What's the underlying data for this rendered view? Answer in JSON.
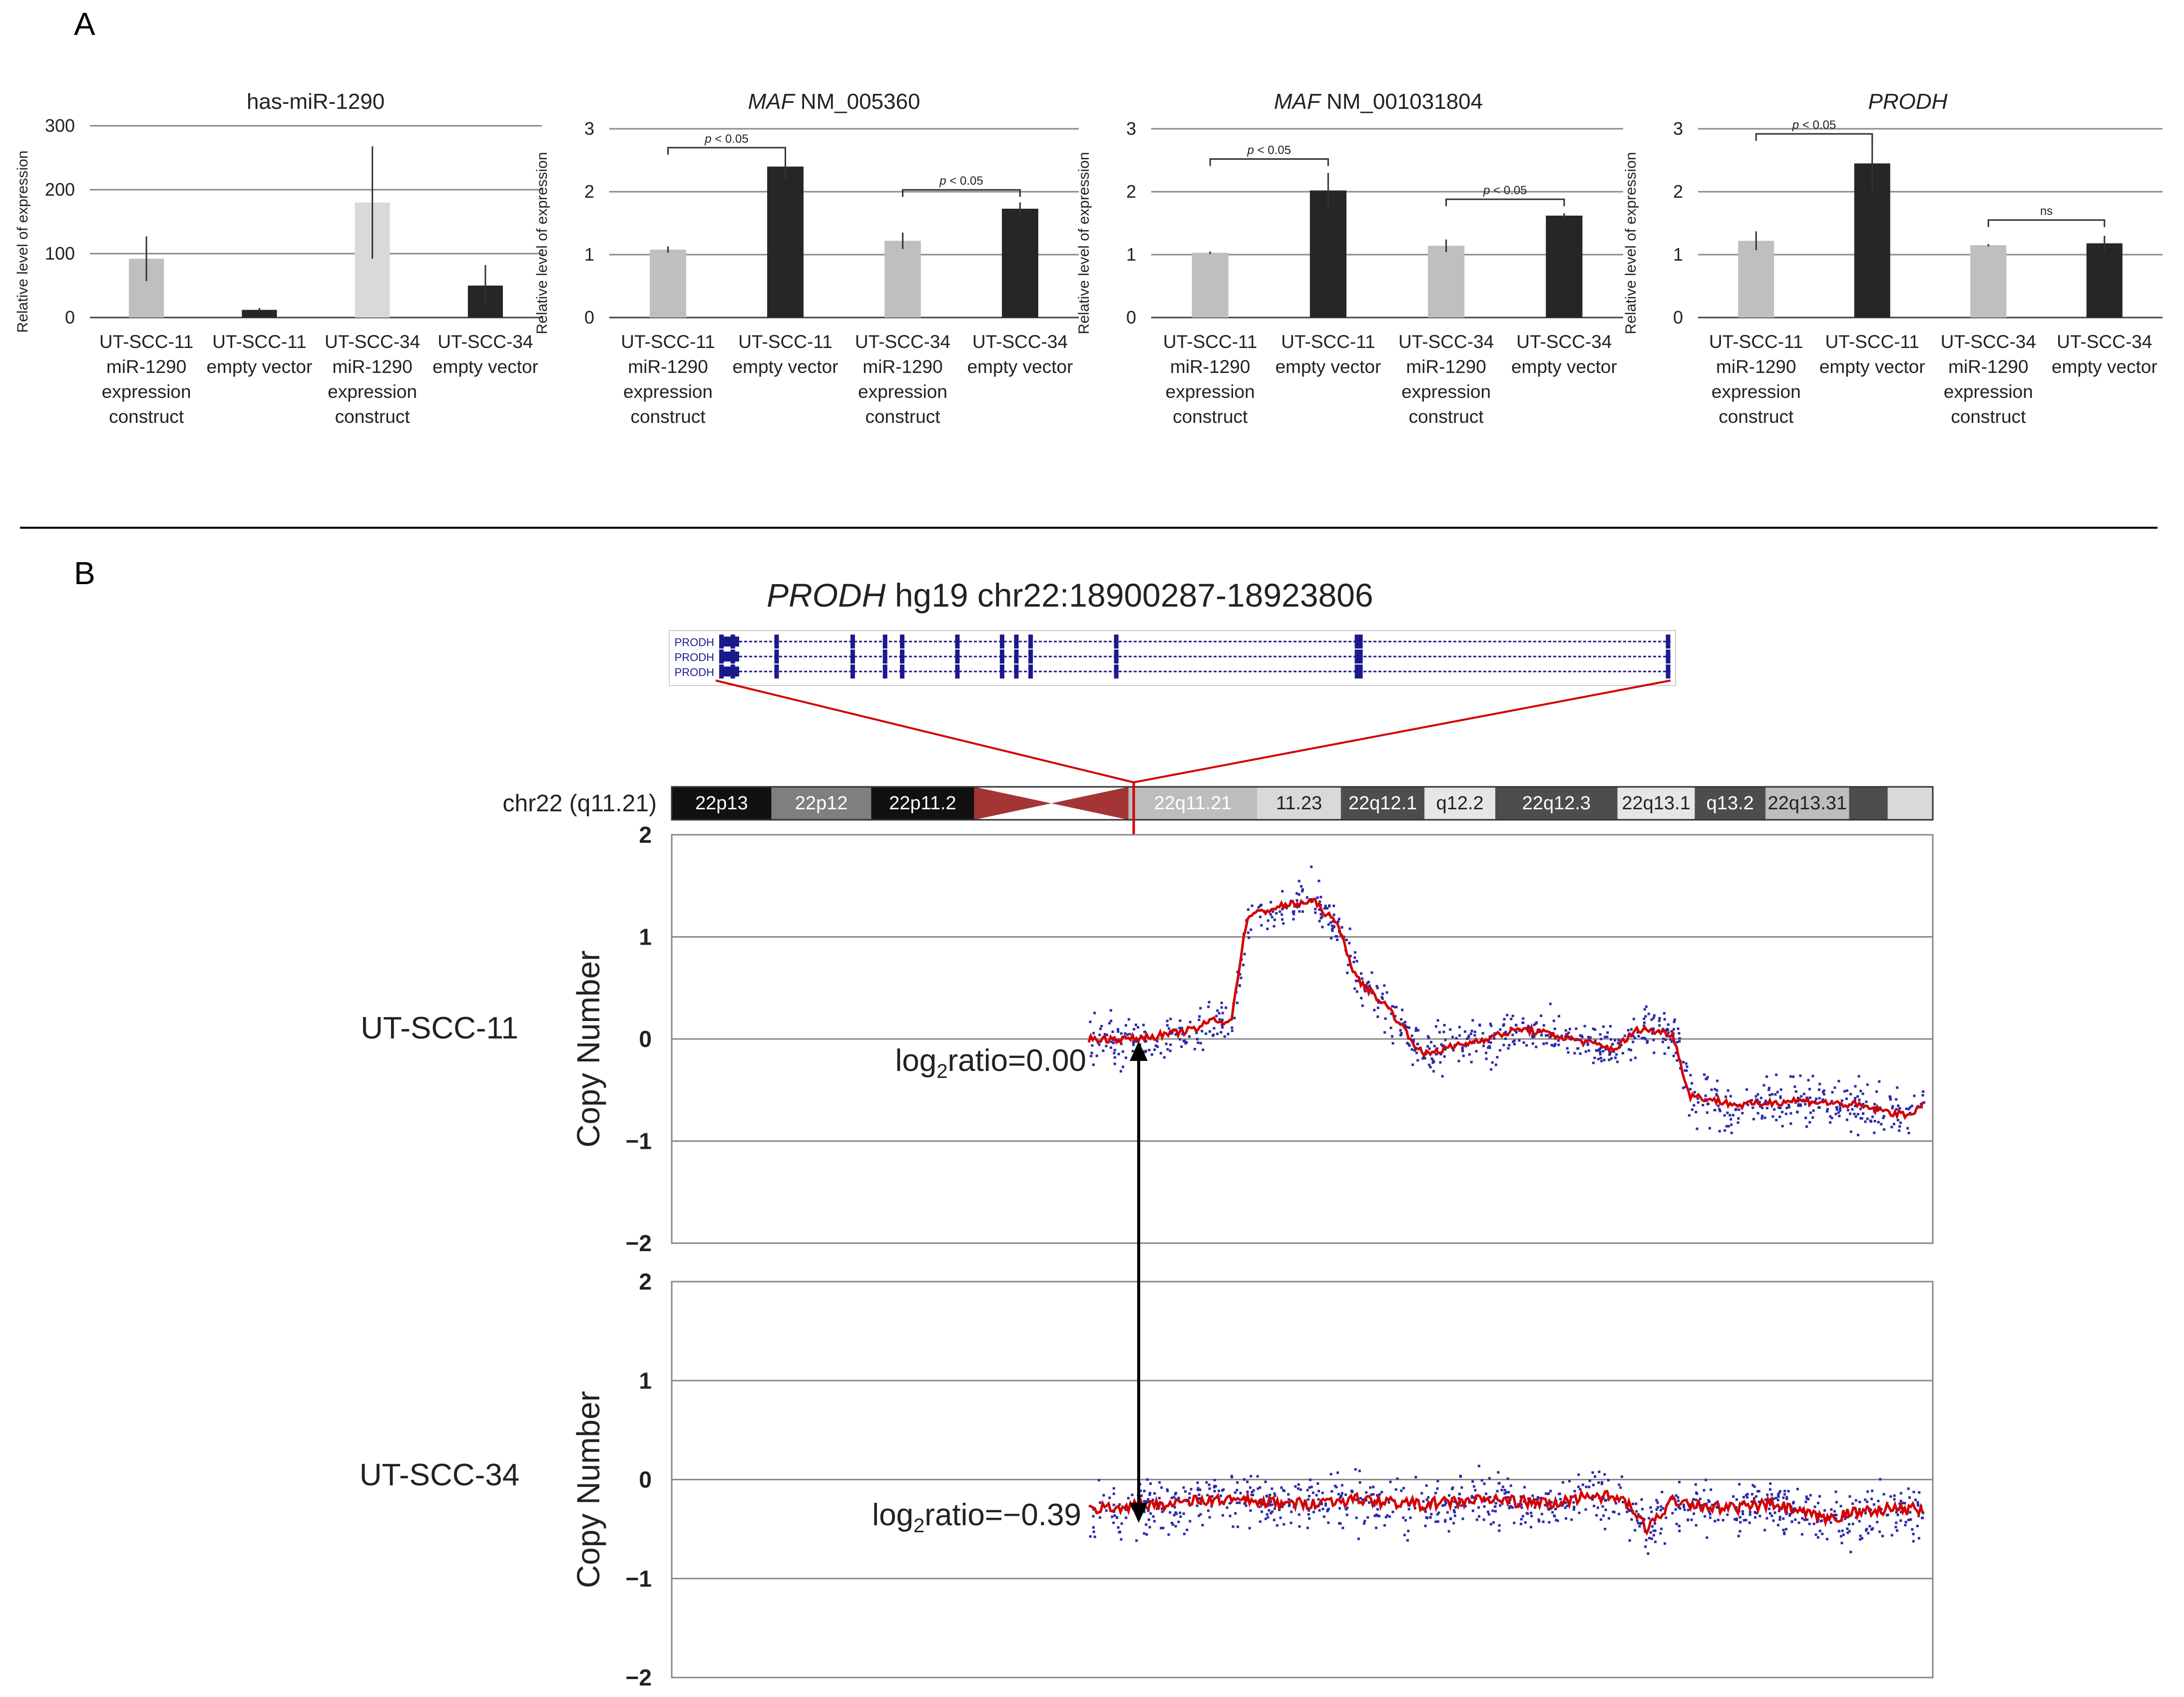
{
  "panels": {
    "a": "A",
    "b": "B"
  },
  "chart_data": [
    {
      "type": "bar",
      "title": "has-miR-1290",
      "ylabel": "Relative level of expression",
      "ylim": [
        0,
        300
      ],
      "yticks": [
        0,
        100,
        200,
        300
      ],
      "categories": [
        [
          "UT-SCC-11",
          "miR-1290",
          "expression",
          "construct"
        ],
        [
          "UT-SCC-11",
          "empty vector"
        ],
        [
          "UT-SCC-34",
          "miR-1290",
          "expression",
          "construct"
        ],
        [
          "UT-SCC-34",
          "empty vector"
        ]
      ],
      "values": [
        92,
        12,
        180,
        50
      ],
      "errors": [
        35,
        3,
        88,
        32
      ],
      "bar_colors": [
        "#bfbfbf",
        "#262626",
        "#d9d9d9",
        "#262626"
      ],
      "comparisons": []
    },
    {
      "type": "bar",
      "title_italic": "MAF",
      "title_rest": " NM_005360",
      "ylabel": "Relative level of expression",
      "ylim": [
        0,
        3
      ],
      "yticks": [
        0,
        1,
        2,
        3
      ],
      "categories": [
        [
          "UT-SCC-11",
          "miR-1290",
          "expression",
          "construct"
        ],
        [
          "UT-SCC-11",
          "empty vector"
        ],
        [
          "UT-SCC-34",
          "miR-1290",
          "expression",
          "construct"
        ],
        [
          "UT-SCC-34",
          "empty vector"
        ]
      ],
      "values": [
        1.08,
        2.4,
        1.22,
        1.73
      ],
      "errors": [
        0.05,
        0.2,
        0.13,
        0.1
      ],
      "bar_colors": [
        "#bfbfbf",
        "#262626",
        "#bfbfbf",
        "#262626"
      ],
      "comparisons": [
        {
          "from": 0,
          "to": 1,
          "level": 2.7,
          "italic": "p",
          "rest": " < 0.05"
        },
        {
          "from": 2,
          "to": 3,
          "level": 2.03,
          "italic": "p",
          "rest": " < 0.05"
        }
      ]
    },
    {
      "type": "bar",
      "title_italic": "MAF",
      "title_rest": " NM_001031804",
      "ylabel": "Relative level of expression",
      "ylim": [
        0,
        3
      ],
      "yticks": [
        0,
        1,
        2,
        3
      ],
      "categories": [
        [
          "UT-SCC-11",
          "miR-1290",
          "expression",
          "construct"
        ],
        [
          "UT-SCC-11",
          "empty vector"
        ],
        [
          "UT-SCC-34",
          "miR-1290",
          "expression",
          "construct"
        ],
        [
          "UT-SCC-34",
          "empty vector"
        ]
      ],
      "values": [
        1.03,
        2.02,
        1.14,
        1.62
      ],
      "errors": [
        0.02,
        0.28,
        0.1,
        0.04
      ],
      "bar_colors": [
        "#bfbfbf",
        "#262626",
        "#bfbfbf",
        "#262626"
      ],
      "comparisons": [
        {
          "from": 0,
          "to": 1,
          "level": 2.52,
          "italic": "p",
          "rest": " < 0.05"
        },
        {
          "from": 2,
          "to": 3,
          "level": 1.88,
          "italic": "p",
          "rest": " < 0.05"
        }
      ]
    },
    {
      "type": "bar",
      "title_italic": "PRODH",
      "title_rest": "",
      "ylabel": "Relative level of expression",
      "ylim": [
        0,
        3
      ],
      "yticks": [
        0,
        1,
        2,
        3
      ],
      "categories": [
        [
          "UT-SCC-11",
          "miR-1290",
          "expression",
          "construct"
        ],
        [
          "UT-SCC-11",
          "empty vector"
        ],
        [
          "UT-SCC-34",
          "miR-1290",
          "expression",
          "construct"
        ],
        [
          "UT-SCC-34",
          "empty vector"
        ]
      ],
      "values": [
        1.22,
        2.45,
        1.15,
        1.18
      ],
      "errors": [
        0.15,
        0.42,
        0.02,
        0.12
      ],
      "bar_colors": [
        "#bfbfbf",
        "#262626",
        "#bfbfbf",
        "#262626"
      ],
      "comparisons": [
        {
          "from": 0,
          "to": 1,
          "level": 2.92,
          "italic": "p",
          "rest": " < 0.05"
        },
        {
          "from": 2,
          "to": 3,
          "level": 1.55,
          "italic": "",
          "rest": "ns"
        }
      ]
    },
    {
      "type": "scatter",
      "sample": "UT-SCC-11",
      "ylabel": "Copy Number",
      "ylim": [
        -2,
        2
      ],
      "yticks": [
        2,
        1,
        0,
        -1,
        -2
      ],
      "annotation_main": "log",
      "annotation_sub": "2",
      "annotation_tail": "ratio=0.00",
      "segments": [
        [
          0.0,
          0.0
        ],
        [
          0.05,
          0.0
        ],
        [
          0.1,
          0.05
        ],
        [
          0.13,
          0.1
        ],
        [
          0.15,
          0.2
        ],
        [
          0.17,
          0.15
        ],
        [
          0.19,
          1.2
        ],
        [
          0.23,
          1.3
        ],
        [
          0.27,
          1.35
        ],
        [
          0.3,
          1.1
        ],
        [
          0.32,
          0.6
        ],
        [
          0.36,
          0.3
        ],
        [
          0.4,
          -0.15
        ],
        [
          0.45,
          -0.05
        ],
        [
          0.52,
          0.1
        ],
        [
          0.58,
          0.0
        ],
        [
          0.63,
          -0.1
        ],
        [
          0.66,
          0.1
        ],
        [
          0.7,
          0.05
        ],
        [
          0.72,
          -0.55
        ],
        [
          0.78,
          -0.65
        ],
        [
          0.85,
          -0.6
        ],
        [
          0.92,
          -0.65
        ],
        [
          0.98,
          -0.75
        ],
        [
          1.0,
          -0.65
        ]
      ]
    },
    {
      "type": "scatter",
      "sample": "UT-SCC-34",
      "ylabel": "Copy Number",
      "ylim": [
        -2,
        2
      ],
      "yticks": [
        2,
        1,
        0,
        -1,
        -2
      ],
      "annotation_main": "log",
      "annotation_sub": "2",
      "annotation_tail": "ratio=−0.39",
      "segments": [
        [
          0.0,
          -0.3
        ],
        [
          0.08,
          -0.25
        ],
        [
          0.16,
          -0.2
        ],
        [
          0.24,
          -0.25
        ],
        [
          0.32,
          -0.2
        ],
        [
          0.4,
          -0.25
        ],
        [
          0.48,
          -0.2
        ],
        [
          0.56,
          -0.25
        ],
        [
          0.6,
          -0.15
        ],
        [
          0.64,
          -0.2
        ],
        [
          0.67,
          -0.5
        ],
        [
          0.7,
          -0.2
        ],
        [
          0.76,
          -0.3
        ],
        [
          0.82,
          -0.25
        ],
        [
          0.88,
          -0.4
        ],
        [
          0.94,
          -0.3
        ],
        [
          1.0,
          -0.3
        ]
      ]
    }
  ],
  "gene_track": {
    "title_italic": "PRODH",
    "title_rest": " hg19 chr22:18900287-18923806",
    "rows": [
      "PRODH",
      "PRODH",
      "PRODH"
    ]
  },
  "ideogram": {
    "label": "chr22 (q11.21)",
    "bands": [
      {
        "name": "22p13",
        "color": "#111111",
        "dark": true,
        "w": 0.155
      },
      {
        "name": "22p12",
        "color": "#7f7f7f",
        "dark": true,
        "w": 0.155
      },
      {
        "name": "22p11.2",
        "color": "#111111",
        "dark": true,
        "w": 0.16
      },
      {
        "name": "",
        "color": "centromere",
        "dark": true,
        "w": 0.24
      },
      {
        "name": "22q11.21",
        "color": "#bdbdbd",
        "dark": true,
        "w": 0.2
      },
      {
        "name": "11.23",
        "color": "#d9d9d9",
        "dark": false,
        "w": 0.13
      },
      {
        "name": "22q12.1",
        "color": "#4d4d4d",
        "dark": true,
        "w": 0.13
      },
      {
        "name": "q12.2",
        "color": "#e6e6e6",
        "dark": false,
        "w": 0.11
      },
      {
        "name": "22q12.3",
        "color": "#4d4d4d",
        "dark": true,
        "w": 0.19
      },
      {
        "name": "22q13.1",
        "color": "#e6e6e6",
        "dark": false,
        "w": 0.12
      },
      {
        "name": "q13.2",
        "color": "#4d4d4d",
        "dark": true,
        "w": 0.11
      },
      {
        "name": "22q13.31",
        "color": "#bdbdbd",
        "dark": false,
        "w": 0.13
      },
      {
        "name": "",
        "color": "#4d4d4d",
        "dark": true,
        "w": 0.06
      },
      {
        "name": "",
        "color": "#d9d9d9",
        "dark": false,
        "w": 0.07
      }
    ]
  },
  "colors": {
    "light_bar": "#bfbfbf",
    "dark_bar": "#262626",
    "segment_line": "#d40000",
    "probe_dots": "#2a2aa8",
    "gene_track": "#1a1a8c"
  }
}
